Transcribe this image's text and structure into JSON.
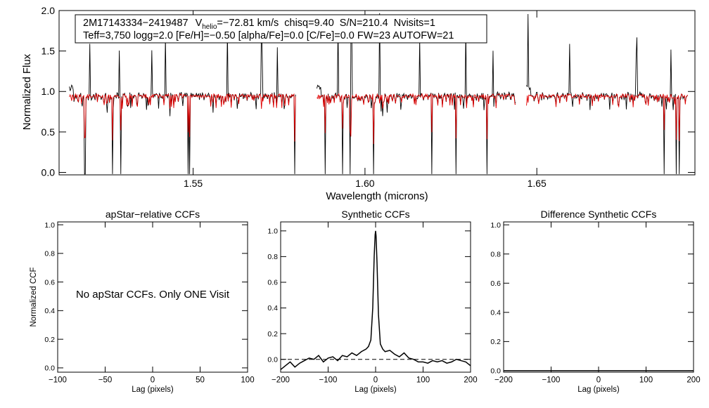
{
  "chart_data": [
    {
      "id": "spectrum",
      "type": "line",
      "xlabel": "Wavelength (microns)",
      "ylabel": "Normalized Flux",
      "xlim": [
        1.511,
        1.696
      ],
      "ylim": [
        -0.03,
        2.0
      ],
      "xticks": [
        1.55,
        1.6,
        1.65
      ],
      "xtick_labels": [
        "1.55",
        "1.60",
        "1.65"
      ],
      "yticks": [
        0.0,
        0.5,
        1.0,
        1.5,
        2.0
      ],
      "ytick_labels": [
        "0.0",
        "0.5",
        "1.0",
        "1.5",
        "2.0"
      ],
      "chips": [
        [
          1.514,
          1.58
        ],
        [
          1.586,
          1.644
        ],
        [
          1.647,
          1.694
        ]
      ],
      "strong_absorption": [
        1.5185,
        1.5265,
        1.529,
        1.5485,
        1.549,
        1.5795,
        1.5805,
        1.5812,
        1.5885,
        1.5935,
        1.5958,
        1.6025,
        1.6195,
        1.6265,
        1.6355,
        1.687,
        1.6905,
        1.6915
      ],
      "emission_spikes": [
        1.52,
        1.5285,
        1.538,
        1.542,
        1.56,
        1.57,
        1.5745,
        1.5922,
        1.596,
        1.6043,
        1.616,
        1.6293,
        1.6372,
        1.6475,
        1.6595,
        1.679,
        1.689
      ],
      "series": [
        {
          "name": "observed spectrum",
          "color": "#000000"
        },
        {
          "name": "best-fit model",
          "color": "#e00000"
        }
      ],
      "annotation": {
        "star_id": "2M17143334−2419487",
        "v_label": "V",
        "v_sub": "helio",
        "v_value": "=−72.81 km/s",
        "chisq": "chisq=9.40",
        "snr": "S/N=210.4",
        "nvisits": "Nvisits=1",
        "line2": "Teff=3,750 logg=2.0 [Fe/H]=−0.50 [alpha/Fe]=0.0 [C/Fe]=0.0 FW=23 AUTOFW=21"
      }
    },
    {
      "id": "apstar_ccf",
      "type": "line",
      "title": "apStar−relative CCFs",
      "xlabel": "Lag (pixels)",
      "ylabel": "Normalized CCF",
      "xlim": [
        -100,
        100
      ],
      "ylim": [
        -0.03,
        1.02
      ],
      "xticks": [
        -100,
        -50,
        0,
        50,
        100
      ],
      "xtick_labels": [
        "−100",
        "−50",
        "0",
        "50",
        "100"
      ],
      "yticks": [
        0.0,
        0.2,
        0.4,
        0.6,
        0.8,
        1.0
      ],
      "ytick_labels": [
        "0.0",
        "0.2",
        "0.4",
        "0.6",
        "0.8",
        "1.0"
      ],
      "message": "No apStar CCFs.  Only ONE Visit",
      "series": []
    },
    {
      "id": "synthetic_ccf",
      "type": "line",
      "title": "Synthetic CCFs",
      "xlabel": "Lag (pixels)",
      "xlim": [
        -200,
        200
      ],
      "ylim": [
        -0.1,
        1.07
      ],
      "xticks": [
        -200,
        -100,
        0,
        100,
        200
      ],
      "xtick_labels": [
        "−200",
        "−100",
        "0",
        "100",
        "200"
      ],
      "yticks": [
        0.0,
        0.2,
        0.4,
        0.6,
        0.8,
        1.0
      ],
      "ytick_labels": [
        "0.0",
        "0.2",
        "0.4",
        "0.6",
        "0.8",
        "1.0"
      ],
      "baseline": 0.0,
      "series": [
        {
          "name": "CCF",
          "x": [
            -200,
            -190,
            -180,
            -170,
            -160,
            -150,
            -140,
            -130,
            -120,
            -110,
            -100,
            -90,
            -80,
            -70,
            -60,
            -50,
            -40,
            -30,
            -20,
            -15,
            -10,
            -6,
            -3,
            -1,
            0,
            1,
            3,
            6,
            10,
            15,
            20,
            30,
            40,
            50,
            60,
            70,
            80,
            90,
            100,
            110,
            120,
            130,
            140,
            150,
            160,
            170,
            180,
            190,
            200
          ],
          "y": [
            -0.08,
            -0.05,
            -0.02,
            -0.06,
            -0.03,
            -0.01,
            0.01,
            0.0,
            0.03,
            -0.02,
            0.01,
            0.02,
            -0.01,
            0.03,
            0.02,
            0.05,
            0.03,
            0.06,
            0.08,
            0.1,
            0.15,
            0.4,
            0.8,
            0.97,
            1.0,
            0.96,
            0.75,
            0.35,
            0.12,
            0.08,
            0.06,
            0.07,
            0.04,
            0.02,
            0.05,
            0.01,
            0.0,
            -0.02,
            -0.02,
            -0.03,
            -0.01,
            -0.02,
            -0.01,
            -0.03,
            -0.02,
            0.0,
            -0.01,
            -0.02,
            -0.05
          ]
        }
      ]
    },
    {
      "id": "difference_ccf",
      "type": "line",
      "title": "Difference Synthetic CCFs",
      "xlabel": "Lag (pixels)",
      "xlim": [
        -200,
        200
      ],
      "ylim": [
        -0.01,
        1.02
      ],
      "xticks": [
        -200,
        -100,
        0,
        100,
        200
      ],
      "xtick_labels": [
        "−200",
        "−100",
        "0",
        "100",
        "200"
      ],
      "yticks": [
        0.0,
        0.2,
        0.4,
        0.6,
        0.8,
        1.0
      ],
      "ytick_labels": [
        "0.0",
        "0.2",
        "0.4",
        "0.6",
        "0.8",
        "1.0"
      ],
      "series": [
        {
          "name": "difference CCF",
          "x": [
            -200,
            200
          ],
          "y": [
            0.0,
            0.0
          ]
        }
      ]
    }
  ]
}
